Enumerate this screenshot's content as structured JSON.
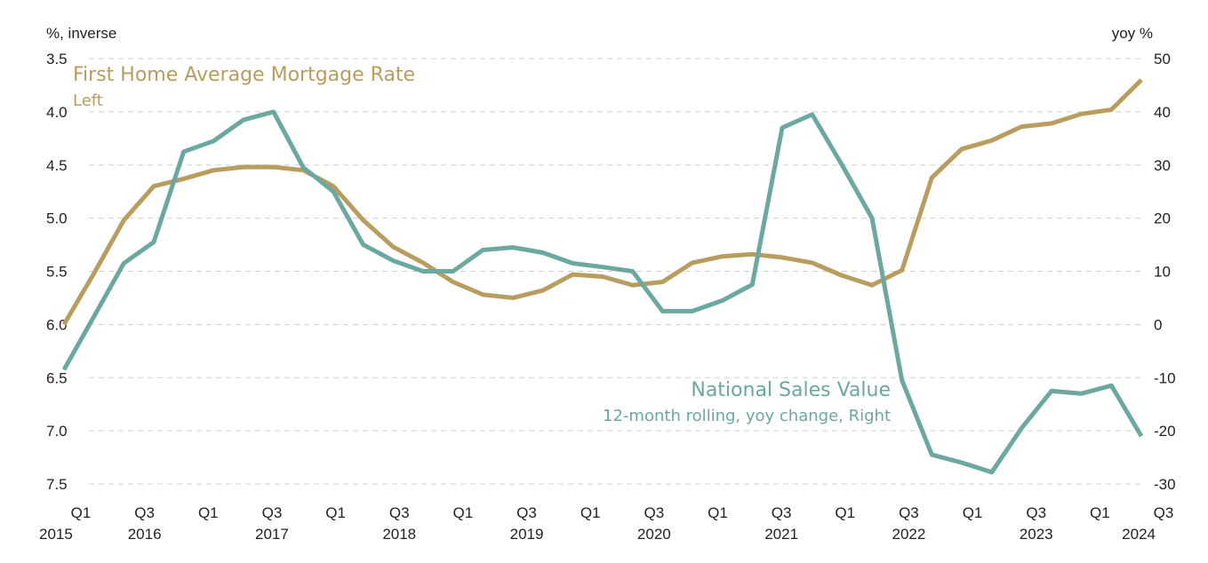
{
  "chart_data": {
    "type": "line",
    "left_axis": {
      "unit_label": "%, inverse",
      "min": 3.5,
      "max": 7.5,
      "inverted": true,
      "ticks": [
        "3.5",
        "4.0",
        "4.5",
        "5.0",
        "5.5",
        "6.0",
        "6.5",
        "7.0",
        "7.5"
      ]
    },
    "right_axis": {
      "unit_label": "yoy %",
      "min": -30,
      "max": 50,
      "ticks": [
        "50",
        "40",
        "30",
        "20",
        "10",
        "0",
        "-10",
        "-20",
        "-30"
      ]
    },
    "x_ticks": [
      {
        "q": "Q1",
        "year": "2015"
      },
      {
        "q": "Q3",
        "year": "2016"
      },
      {
        "q": "Q1",
        "year": ""
      },
      {
        "q": "Q3",
        "year": "2017"
      },
      {
        "q": "Q1",
        "year": ""
      },
      {
        "q": "Q3",
        "year": "2018"
      },
      {
        "q": "Q1",
        "year": ""
      },
      {
        "q": "Q3",
        "year": "2019"
      },
      {
        "q": "Q1",
        "year": ""
      },
      {
        "q": "Q3",
        "year": "2020"
      },
      {
        "q": "Q1",
        "year": ""
      },
      {
        "q": "Q3",
        "year": "2021"
      },
      {
        "q": "Q1",
        "year": ""
      },
      {
        "q": "Q3",
        "year": "2022"
      },
      {
        "q": "Q1",
        "year": ""
      },
      {
        "q": "Q3",
        "year": "2023"
      },
      {
        "q": "Q1",
        "year": ""
      },
      {
        "q": "Q3",
        "year": "2024"
      }
    ],
    "series": [
      {
        "name": "First Home Average Mortgage Rate",
        "subtitle": "Left",
        "axis": "left",
        "color": "#B89D5E",
        "values": [
          6.0,
          5.52,
          5.02,
          4.7,
          4.63,
          4.55,
          4.52,
          4.52,
          4.55,
          4.7,
          5.02,
          5.27,
          5.42,
          5.6,
          5.72,
          5.75,
          5.68,
          5.53,
          5.55,
          5.63,
          5.6,
          5.42,
          5.36,
          5.34,
          5.37,
          5.42,
          5.54,
          5.63,
          5.49,
          4.62,
          4.35,
          4.27,
          4.14,
          4.11,
          4.02,
          3.98,
          3.7
        ]
      },
      {
        "name": "National Sales Value",
        "subtitle": "12-month rolling, yoy change, Right",
        "axis": "right",
        "color": "#6BA89F",
        "values": [
          -8.5,
          1.5,
          11.5,
          15.5,
          32.5,
          34.5,
          38.5,
          40.0,
          29.5,
          25.0,
          15.0,
          12.0,
          10.0,
          10.0,
          14.0,
          14.5,
          13.5,
          11.5,
          10.8,
          10.0,
          2.5,
          2.5,
          4.5,
          7.5,
          37.0,
          39.5,
          30.0,
          20.0,
          -10.5,
          -24.5,
          -26.0,
          -27.8,
          -19.5,
          -12.5,
          -13.0,
          -11.5,
          -21.0
        ]
      }
    ]
  }
}
